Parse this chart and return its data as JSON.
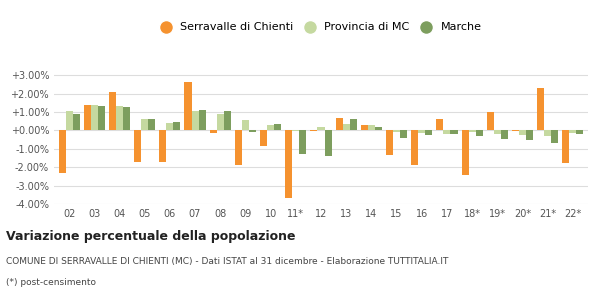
{
  "categories": [
    "02",
    "03",
    "04",
    "05",
    "06",
    "07",
    "08",
    "09",
    "10",
    "11*",
    "12",
    "13",
    "14",
    "15",
    "16",
    "17",
    "18*",
    "19*",
    "20*",
    "21*",
    "22*"
  ],
  "serravalle": [
    -2.3,
    1.4,
    2.1,
    -1.7,
    -1.7,
    2.65,
    -0.15,
    -1.9,
    -0.85,
    -3.7,
    -0.05,
    0.65,
    0.3,
    -1.35,
    -1.9,
    0.6,
    -2.4,
    1.0,
    -0.05,
    2.3,
    -1.75
  ],
  "provincia": [
    1.05,
    1.4,
    1.35,
    0.6,
    0.4,
    1.05,
    0.9,
    0.55,
    0.3,
    -0.05,
    0.2,
    0.35,
    0.3,
    -0.1,
    -0.15,
    -0.2,
    -0.1,
    -0.2,
    -0.25,
    -0.3,
    -0.15
  ],
  "marche": [
    0.9,
    1.3,
    1.25,
    0.6,
    0.45,
    1.1,
    1.05,
    -0.1,
    0.35,
    -1.3,
    -1.4,
    0.6,
    0.2,
    -0.4,
    -0.25,
    -0.2,
    -0.3,
    -0.45,
    -0.5,
    -0.7,
    -0.2
  ],
  "serravalle_color": "#f5922f",
  "provincia_color": "#c5d9a0",
  "marche_color": "#7d9e5e",
  "background_color": "#ffffff",
  "grid_color": "#dddddd",
  "ylim": [
    -4.0,
    3.5
  ],
  "yticks": [
    -4.0,
    -3.0,
    -2.0,
    -1.0,
    0.0,
    1.0,
    2.0,
    3.0
  ],
  "title": "Variazione percentuale della popolazione",
  "subtitle": "COMUNE DI SERRAVALLE DI CHIENTI (MC) - Dati ISTAT al 31 dicembre - Elaborazione TUTTITALIA.IT",
  "footnote": "(*) post-censimento",
  "legend_labels": [
    "Serravalle di Chienti",
    "Provincia di MC",
    "Marche"
  ]
}
